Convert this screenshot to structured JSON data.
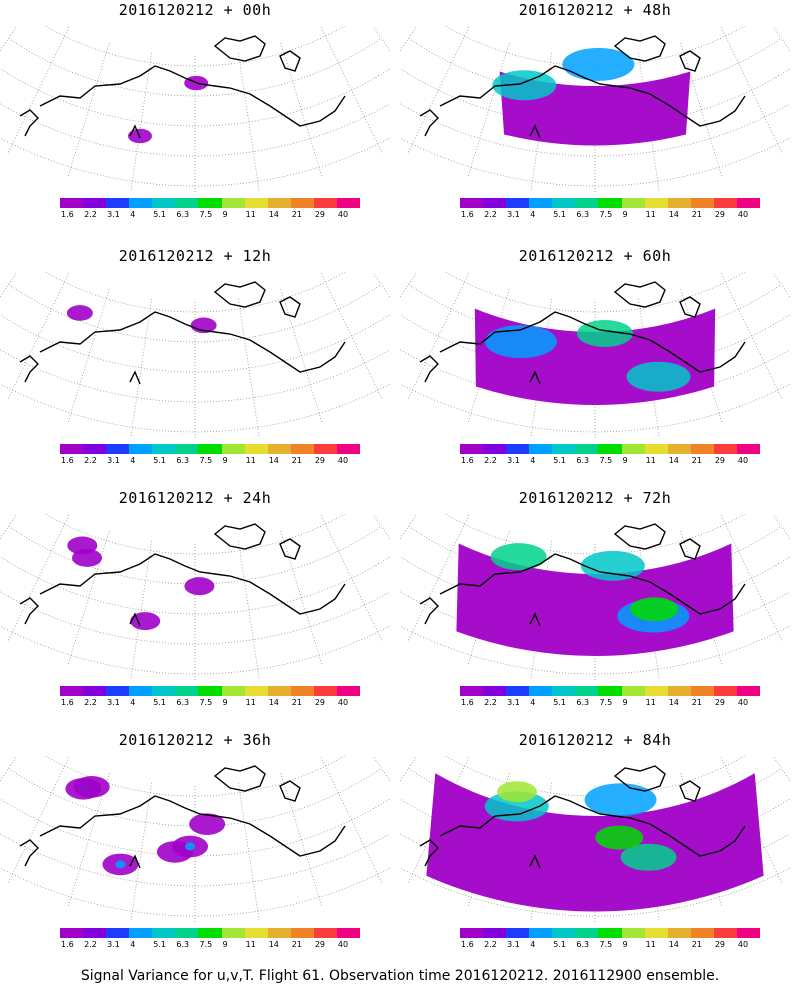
{
  "panels": [
    {
      "title": "2016120212 + 00h",
      "intensity": 0.1
    },
    {
      "title": "2016120212 + 48h",
      "intensity": 0.55
    },
    {
      "title": "2016120212 + 12h",
      "intensity": 0.15
    },
    {
      "title": "2016120212 + 60h",
      "intensity": 0.7
    },
    {
      "title": "2016120212 + 24h",
      "intensity": 0.25
    },
    {
      "title": "2016120212 + 72h",
      "intensity": 0.8
    },
    {
      "title": "2016120212 + 36h",
      "intensity": 0.4
    },
    {
      "title": "2016120212 + 84h",
      "intensity": 0.95
    }
  ],
  "colorbar": {
    "labels": [
      "1.6",
      "2.2",
      "3.1",
      "4",
      "5.1",
      "6.3",
      "7.5",
      "9",
      "11",
      "14",
      "21",
      "29",
      "40"
    ],
    "colors": [
      "#a000c8",
      "#8200dc",
      "#1e3cff",
      "#00a0ff",
      "#00c8c8",
      "#00d28c",
      "#00dc00",
      "#a0e632",
      "#e6dc32",
      "#e6af2d",
      "#f08228",
      "#fa3c3c",
      "#f00082"
    ]
  },
  "footer": "Signal Variance for u,v,T. Flight 61. Observation time 2016120212. 2016112900 ensemble."
}
